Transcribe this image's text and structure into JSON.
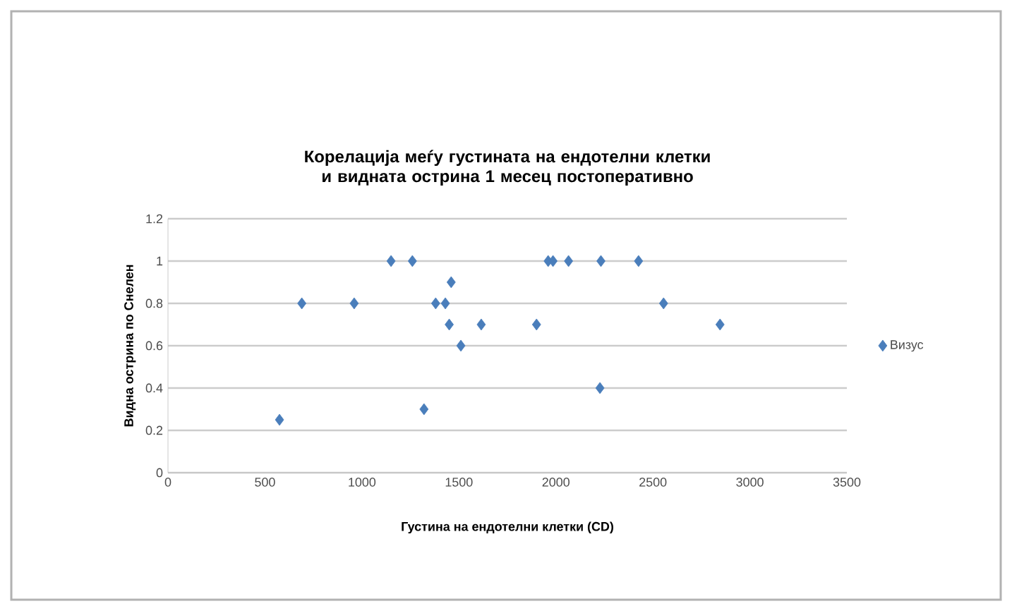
{
  "chart_data": {
    "type": "scatter",
    "title": "Корелација меѓу густината на ендотелни клетки и видната острина 1 месец постоперативно",
    "xlabel": "Густина на ендотелни клетки (CD)",
    "ylabel": "Видна острина по Снелен",
    "x": [
      575,
      690,
      960,
      1150,
      1260,
      1460,
      1380,
      1430,
      1450,
      1615,
      1510,
      1320,
      1960,
      1985,
      2065,
      2232,
      2426,
      2555,
      1900,
      2846,
      2227
    ],
    "series": [
      {
        "name": "Визус",
        "color": "#4a7ebb",
        "values": [
          0.25,
          0.8,
          0.8,
          1.0,
          1.0,
          0.9,
          0.8,
          0.8,
          0.7,
          0.7,
          0.6,
          0.3,
          1.0,
          1.0,
          1.0,
          1.0,
          1.0,
          0.8,
          0.7,
          0.7,
          0.4
        ]
      }
    ],
    "xlim": [
      0,
      3500
    ],
    "xticks": [
      0,
      500,
      1000,
      1500,
      2000,
      2500,
      3000,
      3500
    ],
    "ylim": [
      0,
      1.2
    ],
    "yticks": [
      0,
      0.2,
      0.4,
      0.6,
      0.8,
      1,
      1.2
    ],
    "grid": "y",
    "legend": "right",
    "marker": "diamond"
  }
}
